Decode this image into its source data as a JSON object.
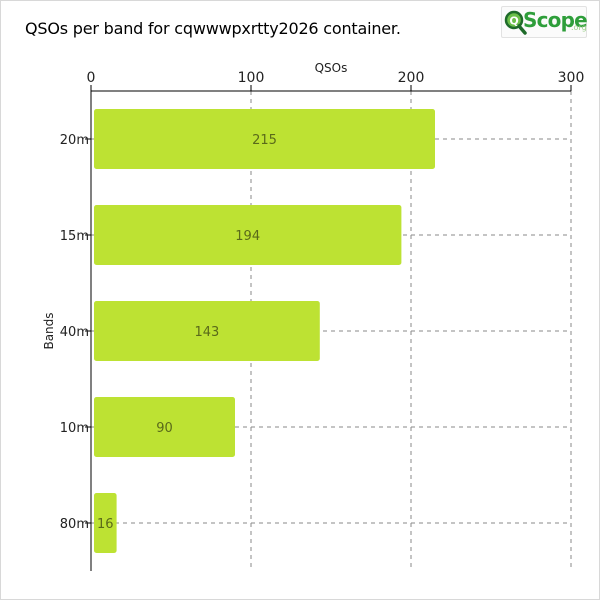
{
  "title": "QSOs per band for cqwwwpxrtty2026 container.",
  "logo": {
    "q": "Q",
    "word": "Scope",
    "suffix": ".org"
  },
  "colors": {
    "bar": "#bde233",
    "bar_text": "#5a6a1a",
    "grid": "#8a8a8a",
    "axis": "#000000",
    "logo_green": "#2e9e3a"
  },
  "chart_data": {
    "type": "bar",
    "orientation": "horizontal",
    "categories": [
      "20m",
      "15m",
      "40m",
      "10m",
      "80m"
    ],
    "values": [
      215,
      194,
      143,
      90,
      16
    ],
    "xlabel": "QSOs",
    "ylabel": "Bands",
    "xlim": [
      0,
      300
    ],
    "xticks": [
      0,
      100,
      200,
      300
    ],
    "x_axis_position": "top",
    "grid": true,
    "data_labels": [
      "215",
      "194",
      "143",
      "90",
      "16"
    ]
  }
}
